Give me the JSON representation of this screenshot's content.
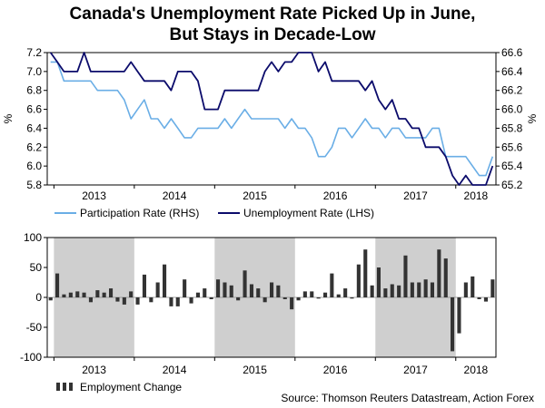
{
  "page": {
    "title_line1": "Canada's Unemployment Rate Picked Up in June,",
    "title_line2": "But Stays in Decade-Low",
    "source": "Source: Thomson Reuters Datastream, Action Forex"
  },
  "colors": {
    "unemployment": "#0b0b6b",
    "participation": "#6aaee6",
    "employment_bar": "#333333",
    "shade": "#cfcfcf",
    "axis": "#000000"
  },
  "chart_data": [
    {
      "type": "line",
      "title": "Canada's Unemployment Rate Picked Up in June, But Stays in Decade-Low",
      "x_axis": {
        "tick_labels": [
          "2013",
          "2014",
          "2015",
          "2016",
          "2017",
          "2018"
        ]
      },
      "left_axis": {
        "label": "%",
        "ylim": [
          5.8,
          7.2
        ],
        "ticks": [
          "5.8",
          "6.0",
          "6.2",
          "6.4",
          "6.6",
          "6.8",
          "7.0",
          "7.2"
        ]
      },
      "right_axis": {
        "label": "%",
        "ylim": [
          65.2,
          66.6
        ],
        "ticks": [
          "65.2",
          "65.4",
          "65.6",
          "65.8",
          "66.0",
          "66.2",
          "66.4",
          "66.6"
        ]
      },
      "legend": [
        "Participation Rate (RHS)",
        "Unemployment Rate (LHS)"
      ],
      "legend_position": "bottom",
      "months": [
        "2012-12",
        "2013-01",
        "2013-02",
        "2013-03",
        "2013-04",
        "2013-05",
        "2013-06",
        "2013-07",
        "2013-08",
        "2013-09",
        "2013-10",
        "2013-11",
        "2013-12",
        "2014-01",
        "2014-02",
        "2014-03",
        "2014-04",
        "2014-05",
        "2014-06",
        "2014-07",
        "2014-08",
        "2014-09",
        "2014-10",
        "2014-11",
        "2014-12",
        "2015-01",
        "2015-02",
        "2015-03",
        "2015-04",
        "2015-05",
        "2015-06",
        "2015-07",
        "2015-08",
        "2015-09",
        "2015-10",
        "2015-11",
        "2015-12",
        "2016-01",
        "2016-02",
        "2016-03",
        "2016-04",
        "2016-05",
        "2016-06",
        "2016-07",
        "2016-08",
        "2016-09",
        "2016-10",
        "2016-11",
        "2016-12",
        "2017-01",
        "2017-02",
        "2017-03",
        "2017-04",
        "2017-05",
        "2017-06",
        "2017-07",
        "2017-08",
        "2017-09",
        "2017-10",
        "2017-11",
        "2017-12",
        "2018-01",
        "2018-02",
        "2018-03",
        "2018-04",
        "2018-05",
        "2018-06"
      ],
      "series": [
        {
          "name": "Unemployment Rate (LHS)",
          "axis": "left",
          "values": [
            7.2,
            7.1,
            7.0,
            7.0,
            7.0,
            7.2,
            7.0,
            7.0,
            7.0,
            7.0,
            7.0,
            7.0,
            7.1,
            7.0,
            6.9,
            6.9,
            6.9,
            6.9,
            6.8,
            7.0,
            7.0,
            7.0,
            6.9,
            6.6,
            6.6,
            6.6,
            6.8,
            6.8,
            6.8,
            6.8,
            6.8,
            6.8,
            7.0,
            7.1,
            7.0,
            7.1,
            7.1,
            7.2,
            7.2,
            7.2,
            7.0,
            7.1,
            6.9,
            6.9,
            6.9,
            6.9,
            6.9,
            6.8,
            6.9,
            6.7,
            6.6,
            6.7,
            6.5,
            6.5,
            6.4,
            6.4,
            6.2,
            6.2,
            6.2,
            6.1,
            5.9,
            5.8,
            5.9,
            5.8,
            5.8,
            5.8,
            6.0
          ]
        },
        {
          "name": "Participation Rate (RHS)",
          "axis": "right",
          "values": [
            66.5,
            66.5,
            66.3,
            66.3,
            66.3,
            66.3,
            66.3,
            66.2,
            66.2,
            66.2,
            66.2,
            66.1,
            65.9,
            66.0,
            66.1,
            65.9,
            65.9,
            65.8,
            65.9,
            65.8,
            65.7,
            65.7,
            65.8,
            65.8,
            65.8,
            65.8,
            65.9,
            65.8,
            65.9,
            66.0,
            65.9,
            65.9,
            65.9,
            65.9,
            65.9,
            65.8,
            65.9,
            65.8,
            65.8,
            65.7,
            65.5,
            65.5,
            65.6,
            65.8,
            65.8,
            65.7,
            65.8,
            65.9,
            65.8,
            65.8,
            65.7,
            65.8,
            65.8,
            65.7,
            65.7,
            65.7,
            65.7,
            65.8,
            65.8,
            65.5,
            65.5,
            65.5,
            65.5,
            65.4,
            65.3,
            65.3,
            65.5
          ]
        }
      ]
    },
    {
      "type": "bar",
      "x_axis": {
        "tick_labels": [
          "2013",
          "2014",
          "2015",
          "2016",
          "2017",
          "2018"
        ]
      },
      "ylim": [
        -100,
        100
      ],
      "y_ticks": [
        "-100",
        "-50",
        "0",
        "50",
        "100"
      ],
      "legend": [
        "Employment Change"
      ],
      "legend_position": "bottom-left",
      "shaded_periods": [
        [
          "2013-01",
          "2013-12"
        ],
        [
          "2015-01",
          "2015-12"
        ],
        [
          "2017-01",
          "2017-12"
        ]
      ],
      "months": [
        "2012-12",
        "2013-01",
        "2013-02",
        "2013-03",
        "2013-04",
        "2013-05",
        "2013-06",
        "2013-07",
        "2013-08",
        "2013-09",
        "2013-10",
        "2013-11",
        "2013-12",
        "2014-01",
        "2014-02",
        "2014-03",
        "2014-04",
        "2014-05",
        "2014-06",
        "2014-07",
        "2014-08",
        "2014-09",
        "2014-10",
        "2014-11",
        "2014-12",
        "2015-01",
        "2015-02",
        "2015-03",
        "2015-04",
        "2015-05",
        "2015-06",
        "2015-07",
        "2015-08",
        "2015-09",
        "2015-10",
        "2015-11",
        "2015-12",
        "2016-01",
        "2016-02",
        "2016-03",
        "2016-04",
        "2016-05",
        "2016-06",
        "2016-07",
        "2016-08",
        "2016-09",
        "2016-10",
        "2016-11",
        "2016-12",
        "2017-01",
        "2017-02",
        "2017-03",
        "2017-04",
        "2017-05",
        "2017-06",
        "2017-07",
        "2017-08",
        "2017-09",
        "2017-10",
        "2017-11",
        "2017-12",
        "2018-01",
        "2018-02",
        "2018-03",
        "2018-04",
        "2018-05",
        "2018-06"
      ],
      "series": [
        {
          "name": "Employment Change",
          "values": [
            -5,
            40,
            5,
            8,
            10,
            8,
            -8,
            12,
            8,
            15,
            -7,
            -12,
            10,
            -12,
            38,
            -8,
            25,
            55,
            -15,
            -15,
            30,
            -10,
            8,
            15,
            -3,
            30,
            25,
            20,
            -5,
            45,
            22,
            15,
            -8,
            25,
            20,
            -3,
            -20,
            -5,
            10,
            10,
            -2,
            8,
            40,
            5,
            15,
            -2,
            55,
            80,
            20,
            50,
            15,
            22,
            20,
            70,
            25,
            25,
            30,
            25,
            80,
            65,
            -90,
            -60,
            25,
            35,
            -3,
            -7,
            30
          ]
        }
      ]
    }
  ]
}
